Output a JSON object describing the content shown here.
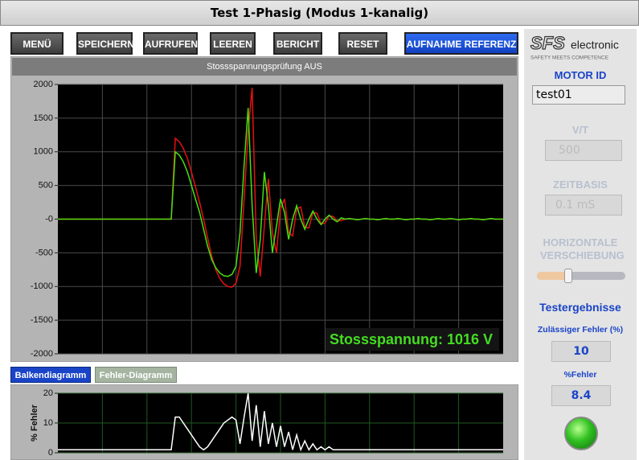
{
  "window": {
    "title": "Test 1-Phasig (Modus 1-kanalig)"
  },
  "toolbar": {
    "buttons": [
      "MENÜ",
      "SPEICHERN",
      "AUFRUFEN",
      "LEEREN",
      "BERICHT",
      "RESET",
      "AUFNAHME REFERENZ"
    ]
  },
  "tabs": [
    "Balkendiagramm",
    "Fehler-Diagramm"
  ],
  "side_panel": {
    "brand_suffix": "electronic",
    "tagline": "SAFETY MEETS COMPETENCE",
    "motor_id_label": "MOTOR ID",
    "motor_id": "test01",
    "vt_label": "V/T",
    "vt_value": "500",
    "timebase_label": "ZEITBASIS",
    "timebase_value": "0.1 mS",
    "shift_label": "HORIZONTALE VERSCHIEBUNG",
    "results_label": "Testergebnisse",
    "allowed_error_label": "Zulässiger Fehler (%)",
    "allowed_error": 10,
    "error_label": "%Fehler",
    "error": 8.4
  },
  "chart_data": [
    {
      "type": "line",
      "title": "Stossspannungsprüfung AUS",
      "annotation": "Stossspannung: 1016 V",
      "ylim": [
        -2000,
        2000
      ],
      "yticks": [
        -2000,
        -1500,
        -1000,
        -500,
        {
          "value": 0,
          "label": "-0"
        },
        500,
        1000,
        1500,
        2000
      ],
      "grid": true,
      "series": [
        {
          "color": "#e81010",
          "values": [
            0,
            0,
            0,
            0,
            0,
            0,
            0,
            0,
            0,
            0,
            0,
            0,
            0,
            0,
            0,
            0,
            0,
            0,
            0,
            0,
            0,
            0,
            0,
            0,
            0,
            0,
            0,
            0,
            0,
            1200,
            1150,
            1050,
            900,
            700,
            480,
            250,
            0,
            -280,
            -550,
            -750,
            -880,
            -960,
            -1000,
            -1010,
            -950,
            -700,
            300,
            1300,
            1950,
            -300,
            -850,
            -100,
            600,
            -200,
            -500,
            150,
            300,
            -200,
            -250,
            150,
            180,
            -120,
            -130,
            100,
            90,
            -70,
            -60,
            50,
            40,
            -30,
            -20,
            0,
            10,
            0,
            -10,
            0,
            10,
            0,
            0,
            -10,
            0,
            10,
            0,
            0,
            10,
            0,
            -10,
            0,
            0,
            10,
            0,
            0,
            -10,
            0,
            10,
            0,
            0,
            10,
            0,
            -10,
            0,
            0,
            10,
            0,
            0,
            -10,
            0,
            10,
            0,
            0,
            0
          ]
        },
        {
          "color": "#44e010",
          "values": [
            0,
            0,
            0,
            0,
            0,
            0,
            0,
            0,
            0,
            0,
            0,
            0,
            0,
            0,
            0,
            0,
            0,
            0,
            0,
            0,
            0,
            0,
            0,
            0,
            0,
            0,
            0,
            0,
            0,
            1000,
            950,
            850,
            700,
            500,
            300,
            100,
            -150,
            -400,
            -600,
            -720,
            -800,
            -840,
            -850,
            -820,
            -700,
            -200,
            800,
            1650,
            200,
            -800,
            -300,
            700,
            200,
            -500,
            -100,
            300,
            100,
            -300,
            0,
            200,
            0,
            -150,
            0,
            120,
            0,
            -80,
            0,
            60,
            0,
            -40,
            20,
            0,
            10,
            0,
            -10,
            0,
            10,
            0,
            0,
            -10,
            0,
            10,
            0,
            0,
            10,
            0,
            -10,
            0,
            0,
            10,
            0,
            0,
            -10,
            0,
            10,
            0,
            0,
            10,
            0,
            -10,
            0,
            0,
            10,
            0,
            0,
            -10,
            0,
            10,
            0,
            0,
            0
          ]
        }
      ]
    },
    {
      "type": "line",
      "ylabel": "% Fehler",
      "ylim": [
        0,
        20
      ],
      "yticks": [
        0,
        10,
        20
      ],
      "grid": true,
      "series": [
        {
          "color": "#ffffff",
          "values": [
            1,
            1,
            1,
            1,
            1,
            1,
            1,
            1,
            1,
            1,
            1,
            1,
            1,
            1,
            1,
            1,
            1,
            1,
            1,
            1,
            1,
            1,
            1,
            1,
            1,
            1,
            1,
            1,
            1,
            12,
            12,
            10,
            8,
            6,
            4,
            2,
            1,
            2,
            4,
            6,
            8,
            10,
            11,
            12,
            11,
            3,
            12,
            20,
            4,
            16,
            2,
            14,
            3,
            10,
            2,
            9,
            2,
            7,
            1,
            6,
            1,
            4,
            1,
            3,
            1,
            2,
            1,
            2,
            1,
            1,
            1,
            1,
            1,
            1,
            1,
            1,
            1,
            1,
            1,
            1,
            1,
            1,
            1,
            1,
            1,
            1,
            1,
            1,
            1,
            1,
            1,
            1,
            1,
            1,
            1,
            1,
            1,
            1,
            1,
            1,
            1,
            1,
            1,
            1,
            1,
            1,
            1,
            1,
            1,
            1,
            1
          ]
        }
      ]
    }
  ]
}
